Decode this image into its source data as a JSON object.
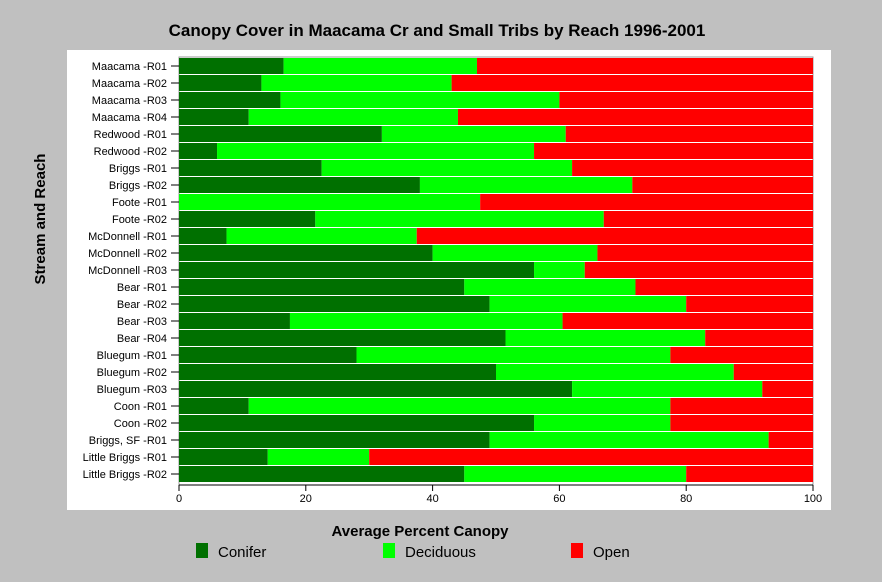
{
  "chart_data": {
    "type": "bar",
    "orientation": "horizontal",
    "stacked": true,
    "title": "Canopy Cover in Maacama Cr and Small Tribs by Reach 1996-2001",
    "xlabel": "Average Percent Canopy",
    "ylabel": "Stream and Reach",
    "xlim": [
      0,
      100
    ],
    "xticks": [
      "0",
      "20",
      "40",
      "60",
      "80",
      "100"
    ],
    "legend_position": "bottom",
    "categories": [
      "Maacama -R01",
      "Maacama -R02",
      "Maacama -R03",
      "Maacama -R04",
      "Redwood -R01",
      "Redwood -R02",
      "Briggs -R01",
      "Briggs -R02",
      "Foote -R01",
      "Foote -R02",
      "McDonnell -R01",
      "McDonnell -R02",
      "McDonnell -R03",
      "Bear -R01",
      "Bear -R02",
      "Bear -R03",
      "Bear -R04",
      "Bluegum -R01",
      "Bluegum -R02",
      "Bluegum -R03",
      "Coon -R01",
      "Coon -R02",
      "Briggs, SF -R01",
      "Little Briggs -R01",
      "Little Briggs -R02"
    ],
    "series": [
      {
        "name": "Conifer",
        "color": "#007000",
        "values": [
          16.5,
          13,
          16,
          11,
          32,
          6,
          22.5,
          38,
          0,
          21.5,
          7.5,
          40,
          56,
          45,
          49,
          17.5,
          51.5,
          28,
          50,
          62,
          11,
          56,
          49,
          14,
          45
        ]
      },
      {
        "name": "Deciduous",
        "color": "#00ff00",
        "values": [
          30.5,
          30,
          44,
          33,
          29,
          50,
          39.5,
          33.5,
          47.5,
          45.5,
          30,
          26,
          8,
          27,
          31,
          43,
          31.5,
          49.5,
          37.5,
          30,
          66.5,
          21.5,
          44,
          16,
          35
        ]
      },
      {
        "name": "Open",
        "color": "#ff0000",
        "values": [
          53,
          57,
          40,
          56,
          39,
          44,
          38,
          28.5,
          52.5,
          33,
          62.5,
          34,
          36,
          28,
          20,
          39.5,
          17,
          22.5,
          12.5,
          8,
          22.5,
          22.5,
          7,
          70,
          20
        ]
      }
    ]
  }
}
